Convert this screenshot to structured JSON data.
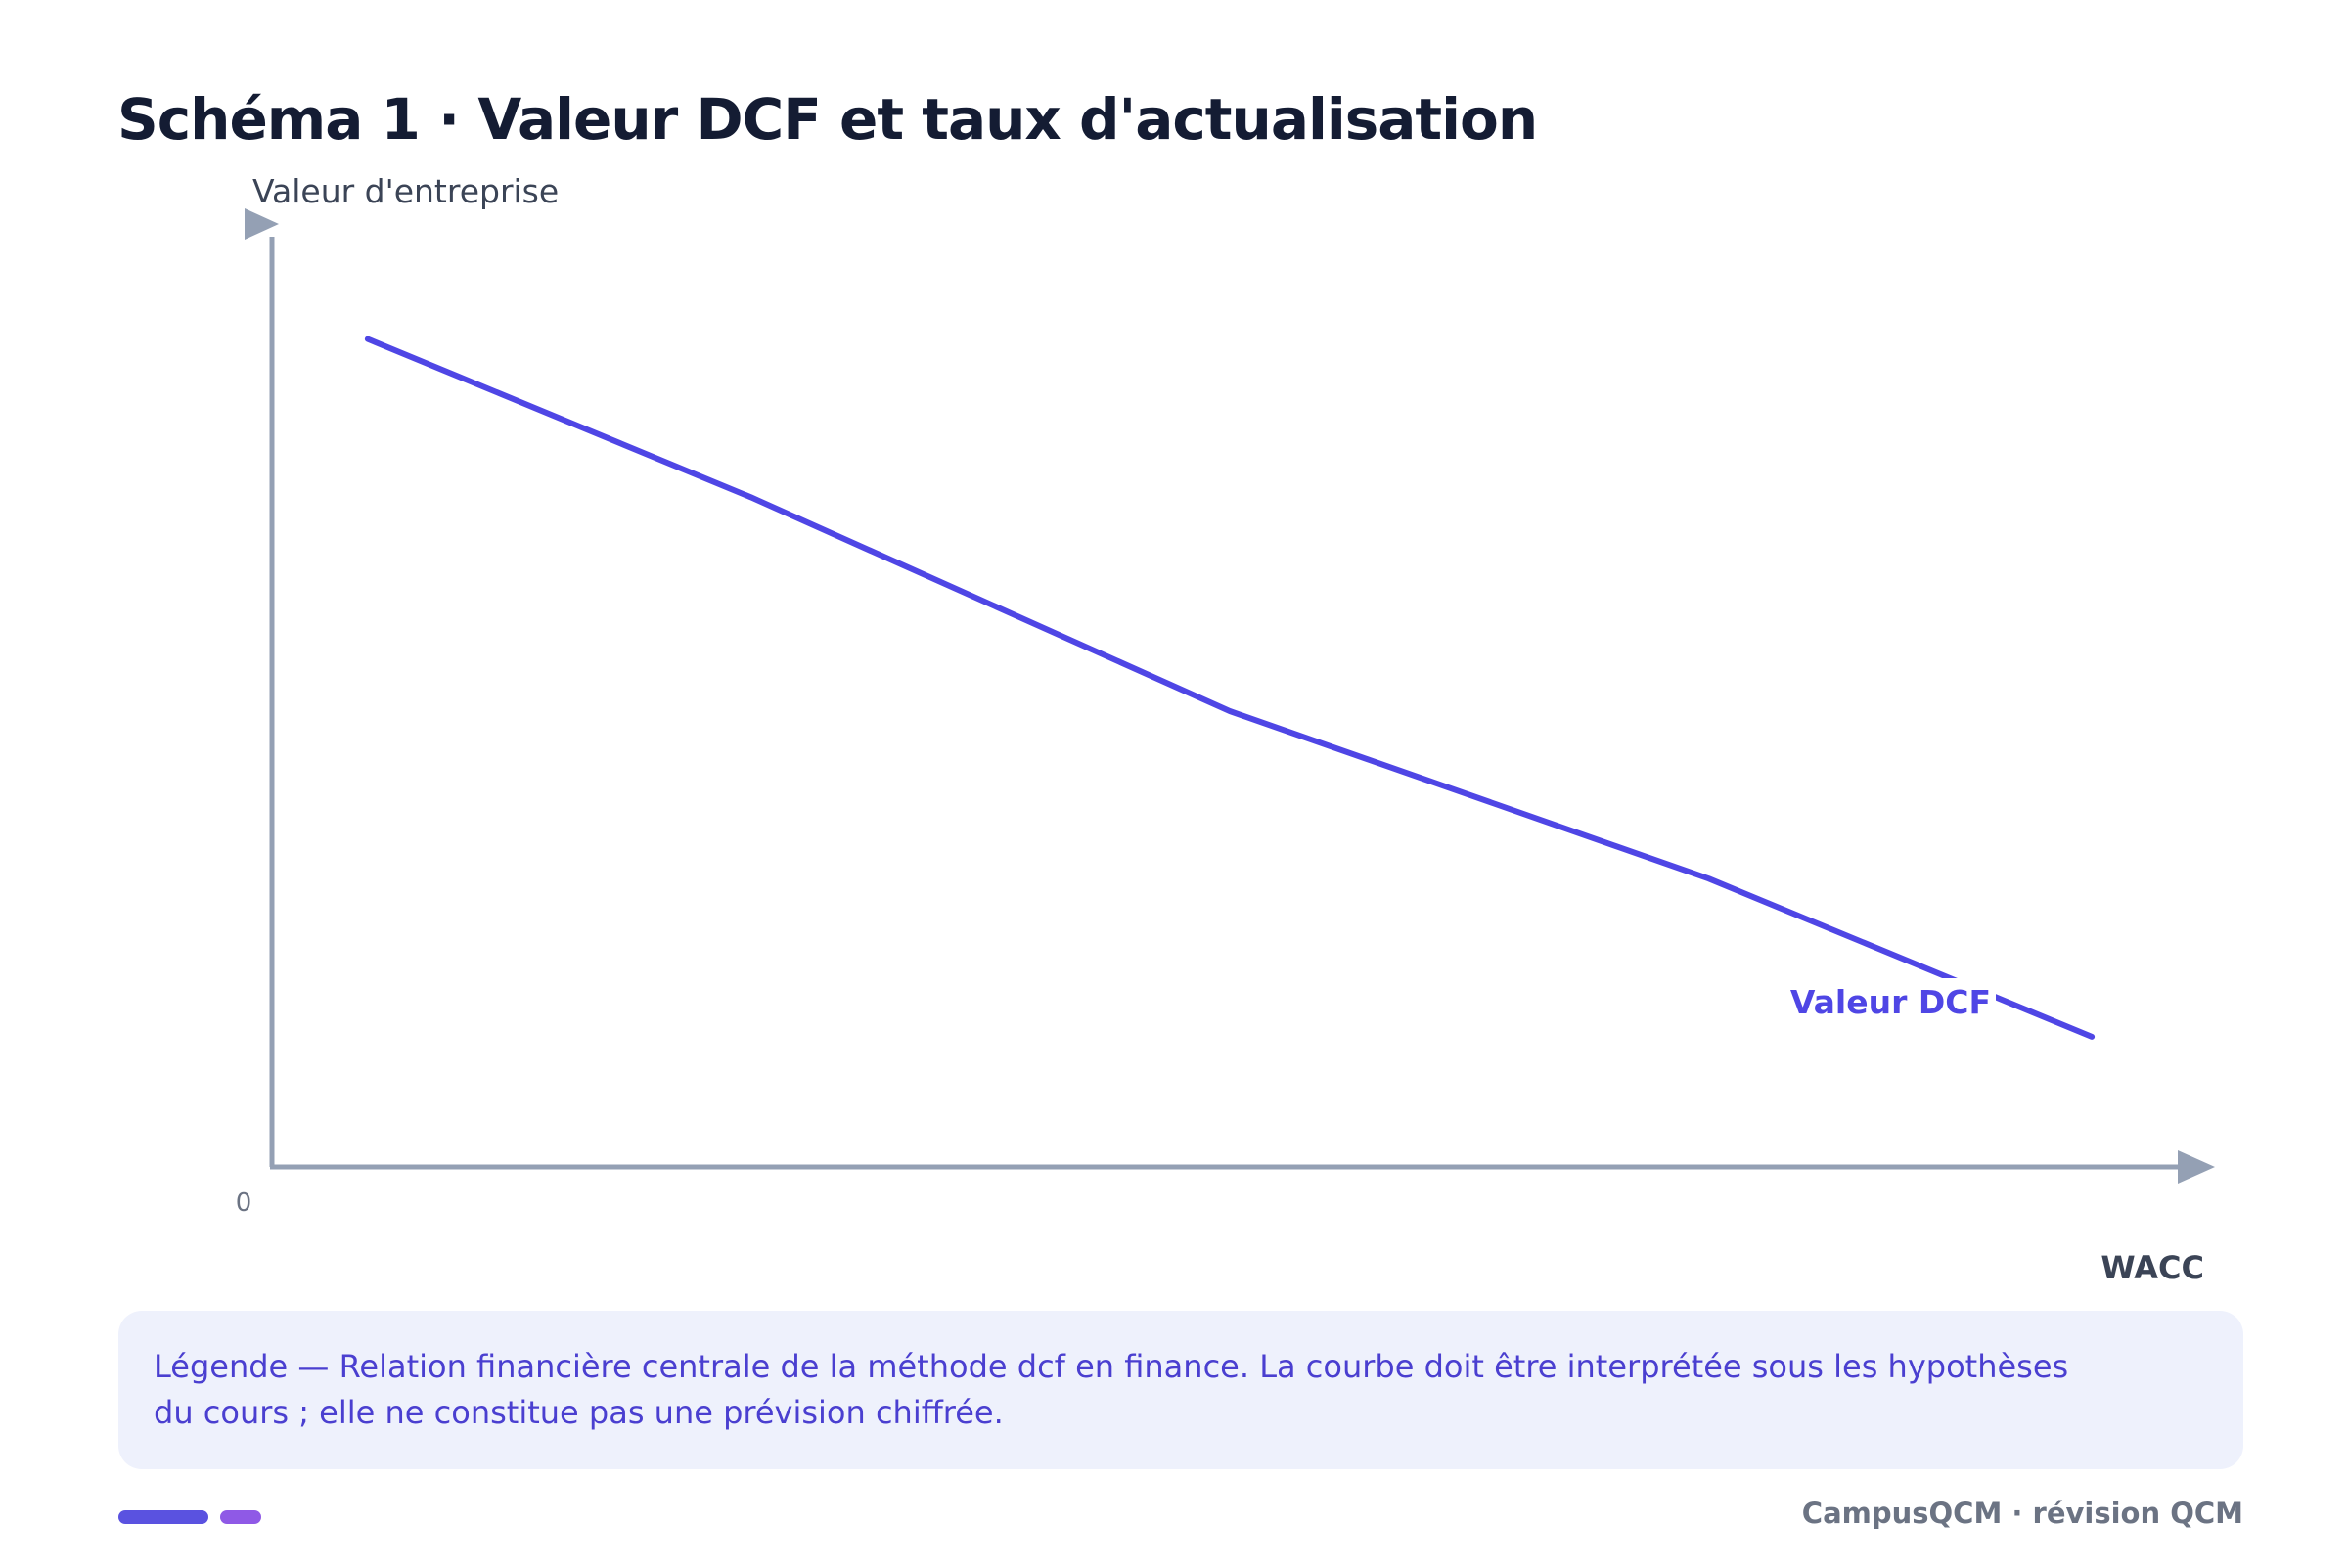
{
  "title": "Schéma 1 · Valeur DCF et taux d'actualisation",
  "colors": {
    "axis": "#94a0b4",
    "curve": "#4f46e5",
    "title": "#141c33",
    "legend_bg": "#eef1fc",
    "legend_text": "#4a3fd0",
    "footer": "#6b7383"
  },
  "chart_data": {
    "type": "line",
    "ylabel": "Valeur d'entreprise",
    "xlabel": "WACC",
    "origin_label": "0",
    "grid": false,
    "series": [
      {
        "name": "Valeur DCF",
        "x": [
          0.05,
          0.25,
          0.5,
          0.75,
          0.95
        ],
        "y": [
          0.89,
          0.72,
          0.49,
          0.31,
          0.14
        ]
      }
    ],
    "xlim": [
      0,
      1
    ],
    "ylim": [
      0,
      1
    ]
  },
  "legend": {
    "text": "Légende — Relation financière centrale de la méthode dcf en finance. La courbe doit être interprétée sous les hypothèses du cours ; elle ne constitue pas une prévision chiffrée."
  },
  "footer": {
    "brand": "CampusQCM · révision QCM"
  }
}
